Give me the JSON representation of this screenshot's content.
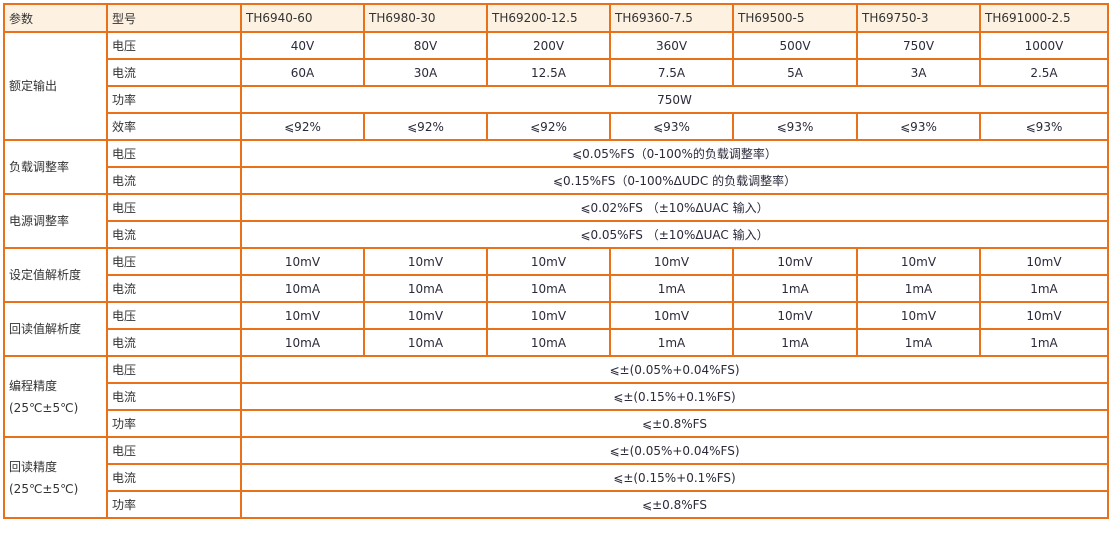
{
  "header": {
    "param_label": "参数",
    "model_label": "型号",
    "models": [
      "TH6940-60",
      "TH6980-30",
      "TH69200-12.5",
      "TH69360-7.5",
      "TH69500-5",
      "TH69750-3",
      "TH691000-2.5"
    ]
  },
  "groups": [
    {
      "label": "额定输出",
      "note": "",
      "rows": [
        {
          "sub": "电压",
          "values": [
            "40V",
            "80V",
            "200V",
            "360V",
            "500V",
            "750V",
            "1000V"
          ]
        },
        {
          "sub": "电流",
          "values": [
            "60A",
            "30A",
            "12.5A",
            "7.5A",
            "5A",
            "3A",
            "2.5A"
          ]
        },
        {
          "sub": "功率",
          "merged": "750W"
        },
        {
          "sub": "效率",
          "values": [
            "⩽92%",
            "⩽92%",
            "⩽92%",
            "⩽93%",
            "⩽93%",
            "⩽93%",
            "⩽93%"
          ]
        }
      ]
    },
    {
      "label": "负载调整率",
      "note": "",
      "rows": [
        {
          "sub": "电压",
          "merged": "⩽0.05%FS（0-100%的负载调整率）"
        },
        {
          "sub": "电流",
          "merged": "⩽0.15%FS（0-100%ΔUDC 的负载调整率）"
        }
      ]
    },
    {
      "label": "电源调整率",
      "note": "",
      "rows": [
        {
          "sub": "电压",
          "merged": "⩽0.02%FS （±10%ΔUAC 输入）"
        },
        {
          "sub": "电流",
          "merged": "⩽0.05%FS （±10%ΔUAC 输入）"
        }
      ]
    },
    {
      "label": "设定值解析度",
      "note": "",
      "rows": [
        {
          "sub": "电压",
          "values": [
            "10mV",
            "10mV",
            "10mV",
            "10mV",
            "10mV",
            "10mV",
            "10mV"
          ]
        },
        {
          "sub": "电流",
          "values": [
            "10mA",
            "10mA",
            "10mA",
            "1mA",
            "1mA",
            "1mA",
            "1mA"
          ]
        }
      ]
    },
    {
      "label": "回读值解析度",
      "note": "",
      "rows": [
        {
          "sub": "电压",
          "values": [
            "10mV",
            "10mV",
            "10mV",
            "10mV",
            "10mV",
            "10mV",
            "10mV"
          ]
        },
        {
          "sub": "电流",
          "values": [
            "10mA",
            "10mA",
            "10mA",
            "1mA",
            "1mA",
            "1mA",
            "1mA"
          ]
        }
      ]
    },
    {
      "label": "编程精度",
      "note": "(25℃±5℃)",
      "rows": [
        {
          "sub": "电压",
          "merged": "⩽±(0.05%+0.04%FS)"
        },
        {
          "sub": "电流",
          "merged": "⩽±(0.15%+0.1%FS)"
        },
        {
          "sub": "功率",
          "merged": "⩽±0.8%FS"
        }
      ]
    },
    {
      "label": "回读精度",
      "note": "(25℃±5℃)",
      "rows": [
        {
          "sub": "电压",
          "merged": "⩽±(0.05%+0.04%FS)"
        },
        {
          "sub": "电流",
          "merged": "⩽±(0.15%+0.1%FS)"
        },
        {
          "sub": "功率",
          "merged": "⩽±0.8%FS"
        }
      ]
    }
  ],
  "colors": {
    "border": "#e8711a",
    "header_bg": "#fdf2e2"
  }
}
